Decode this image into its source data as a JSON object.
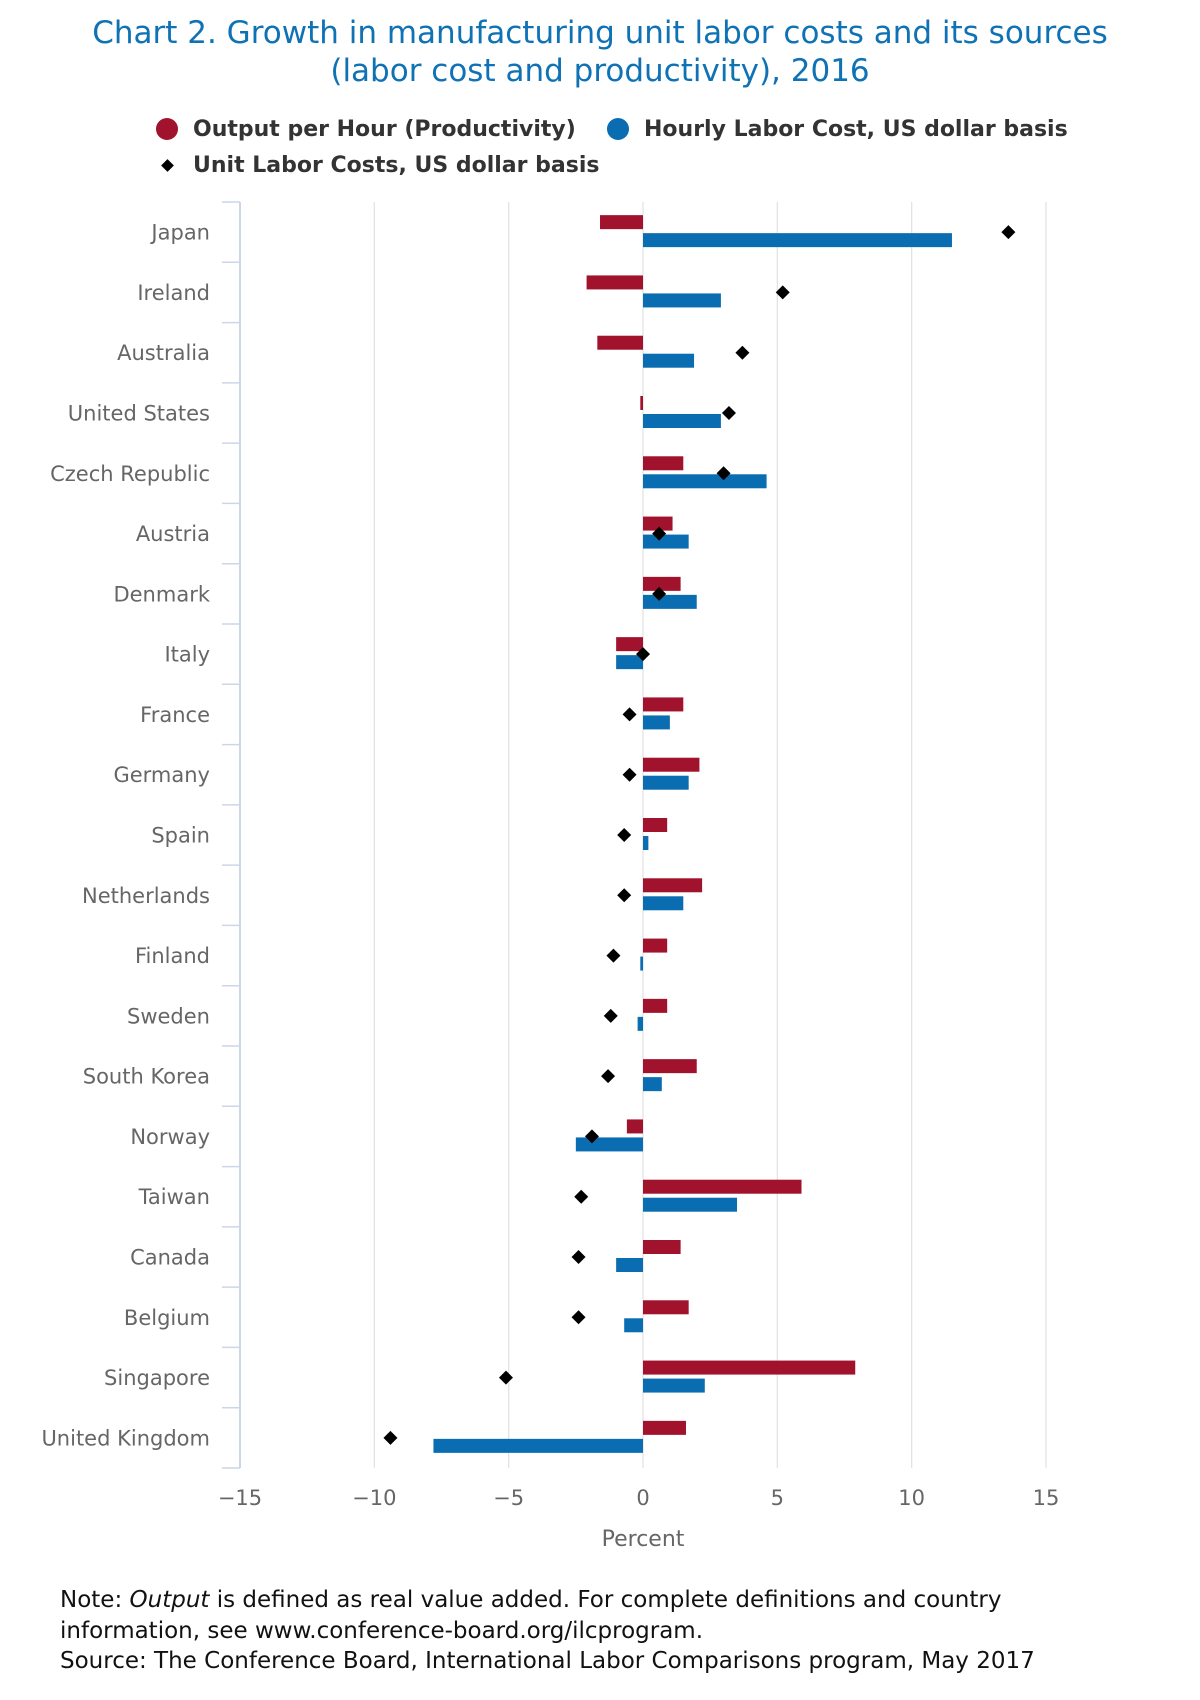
{
  "chart_data": {
    "type": "bar",
    "orientation": "horizontal",
    "title": "Chart 2. Growth in manufacturing unit labor costs and its sources\n(labor cost and productivity), 2016",
    "categories": [
      "Japan",
      "Ireland",
      "Australia",
      "United States",
      "Czech Republic",
      "Austria",
      "Denmark",
      "Italy",
      "France",
      "Germany",
      "Spain",
      "Netherlands",
      "Finland",
      "Sweden",
      "South Korea",
      "Norway",
      "Taiwan",
      "Canada",
      "Belgium",
      "Singapore",
      "United Kingdom"
    ],
    "series": [
      {
        "name": "Output per Hour (Productivity)",
        "type": "bar",
        "marker": "circle",
        "color": "#a1122d",
        "values": [
          -1.6,
          -2.1,
          -1.7,
          -0.1,
          1.5,
          1.1,
          1.4,
          -1.0,
          1.5,
          2.1,
          0.9,
          2.2,
          0.9,
          0.9,
          2.0,
          -0.6,
          5.9,
          1.4,
          1.7,
          7.9,
          1.6
        ]
      },
      {
        "name": "Hourly Labor Cost, US dollar basis",
        "type": "bar",
        "marker": "circle",
        "color": "#0b6db1",
        "values": [
          11.5,
          2.9,
          1.9,
          2.9,
          4.6,
          1.7,
          2.0,
          -1.0,
          1.0,
          1.7,
          0.2,
          1.5,
          -0.1,
          -0.2,
          0.7,
          -2.5,
          3.5,
          -1.0,
          -0.7,
          2.3,
          -7.8
        ]
      },
      {
        "name": "Unit Labor Costs, US dollar basis",
        "type": "scatter",
        "marker": "diamond",
        "color": "#000000",
        "values": [
          13.6,
          5.2,
          3.7,
          3.2,
          3.0,
          0.6,
          0.6,
          0.0,
          -0.5,
          -0.5,
          -0.7,
          -0.7,
          -1.1,
          -1.2,
          -1.3,
          -1.9,
          -2.3,
          -2.4,
          -2.4,
          -5.1,
          -9.4
        ]
      }
    ],
    "xlabel": "Percent",
    "ylabel": "",
    "xlim": [
      -15,
      15
    ],
    "x_ticks": [
      -15,
      -10,
      -5,
      0,
      5,
      10,
      15
    ],
    "x_tick_labels": [
      "−15",
      "−10",
      "−5",
      "0",
      "5",
      "10",
      "15"
    ],
    "grid": true,
    "legend_position": "top"
  },
  "notes": {
    "note_label": "Note:",
    "note_term": "Output",
    "note_text": "is defined as real value added. For complete definitions and country\ninformation, see www.conference-board.org/ilcprogram.",
    "source": "Source: The Conference Board, International Labor Comparisons program, May 2017"
  }
}
